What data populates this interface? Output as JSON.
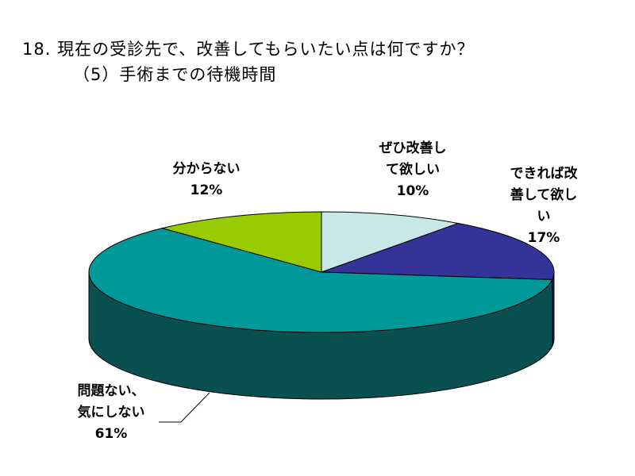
{
  "title_lines": [
    "18. 現在の受診先で、改善してもらいたい点は何ですか？",
    "（5）手術までの待機時間"
  ],
  "chart_data": {
    "type": "pie",
    "style": "3d-pie",
    "title": "18. 現在の受診先で、改善してもらいたい点は何ですか？ （5）手術までの待機時間",
    "legend": "none",
    "slices": [
      {
        "label_lines": [
          "ぜひ改善し",
          "て欲しい"
        ],
        "percent_label": "10%",
        "value": 10,
        "color": "#c8e8e8",
        "side_color": "#7fa3a3"
      },
      {
        "label_lines": [
          "できれば改",
          "善して欲し",
          "い"
        ],
        "percent_label": "17%",
        "value": 17,
        "color": "#333399",
        "side_color": "#1f1f5e"
      },
      {
        "label_lines": [
          "問題ない、",
          "気にしない"
        ],
        "percent_label": "61%",
        "value": 61,
        "color": "#009999",
        "side_color": "#0a5050"
      },
      {
        "label_lines": [
          "分からない"
        ],
        "percent_label": "12%",
        "value": 12,
        "color": "#99cc00",
        "side_color": "#5c7a00"
      }
    ]
  }
}
